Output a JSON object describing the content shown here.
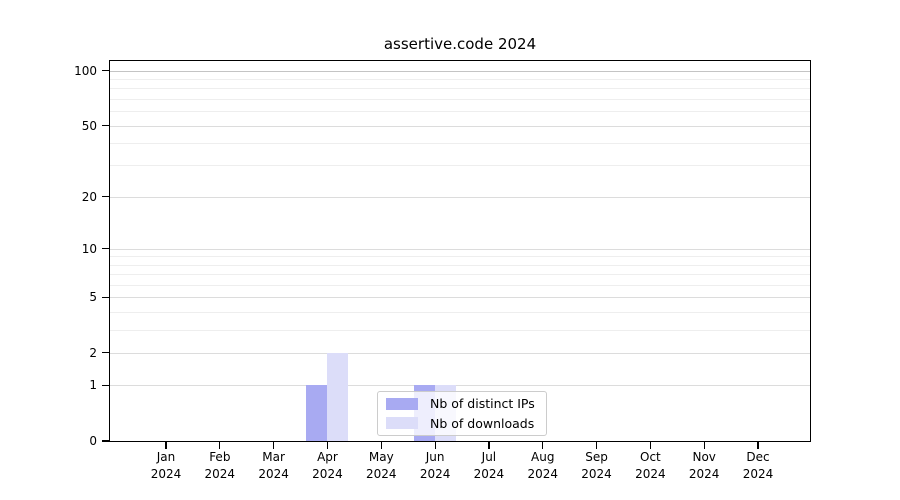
{
  "chart_data": {
    "type": "bar",
    "title": "assertive.code 2024",
    "x_categories": [
      "Jan",
      "Feb",
      "Mar",
      "Apr",
      "May",
      "Jun",
      "Jul",
      "Aug",
      "Sep",
      "Oct",
      "Nov",
      "Dec"
    ],
    "x_sublabel": "2024",
    "series": [
      {
        "name": "Nb of distinct IPs",
        "color": "#a8aaf2",
        "values": [
          0,
          0,
          0,
          1,
          0,
          1,
          0,
          0,
          0,
          0,
          0,
          0
        ]
      },
      {
        "name": "Nb of downloads",
        "color": "#dcddf9",
        "values": [
          0,
          0,
          0,
          2,
          0,
          1,
          0,
          0,
          0,
          0,
          0,
          0
        ]
      }
    ],
    "yscale": "log1p",
    "ylim": [
      0,
      113
    ],
    "ytick_major": [
      0,
      1,
      2,
      5,
      10,
      20,
      50,
      100
    ],
    "ytick_minor": [
      3,
      4,
      6,
      7,
      8,
      9,
      30,
      40,
      60,
      70,
      80,
      90
    ],
    "grid": true,
    "legend_position": "lower-center",
    "colors": {
      "grid_major": "#dcdcdc",
      "grid_minor": "#eeeeee",
      "grid_top": "#c4c4c4",
      "axis": "#000000",
      "legend_border": "#cccccc",
      "legend_bg": "rgba(255,255,255,0.8)"
    }
  }
}
